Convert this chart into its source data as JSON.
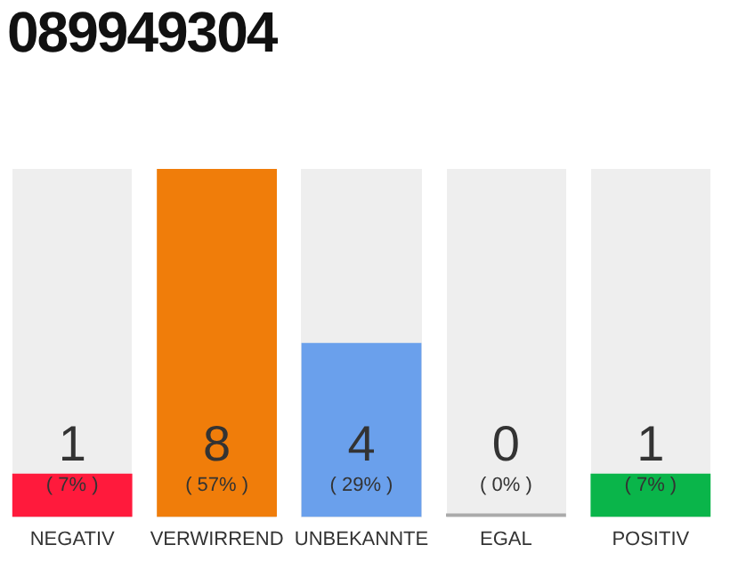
{
  "chart_data": {
    "type": "bar",
    "title": "089949304",
    "categories": [
      "NEGATIV",
      "VERWIRREND",
      "UNBEKANNTE",
      "EGAL",
      "POSITIV"
    ],
    "values": [
      1,
      8,
      4,
      0,
      1
    ],
    "colors": [
      "#ff1a3c",
      "#f07d0a",
      "#6aa0ec",
      "#aaaaaa",
      "#0ab54a"
    ],
    "data_labels": true,
    "grid": false,
    "legend": false,
    "tick_labels": "x",
    "annotations": [
      "( 7% )",
      "( 57% )",
      "( 29% )",
      "( 0% )",
      "( 7% )"
    ]
  }
}
